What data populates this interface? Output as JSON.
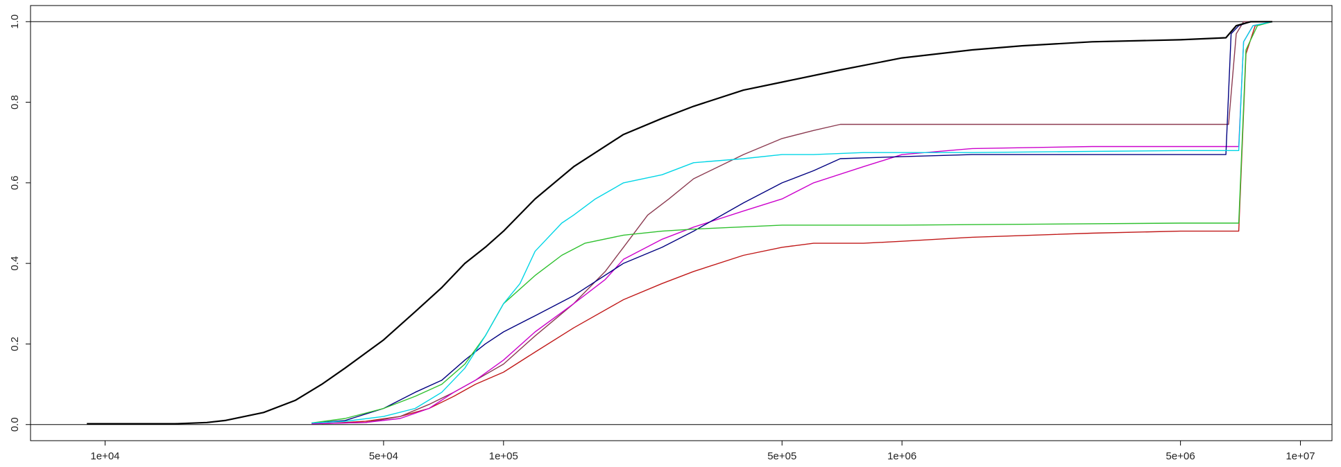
{
  "chart_data": {
    "type": "line",
    "x_scale": "log",
    "xlim": [
      6500,
      12000000
    ],
    "ylim": [
      -0.04,
      1.04
    ],
    "x_ticks": [
      {
        "value": 10000,
        "label": "1e+04"
      },
      {
        "value": 50000,
        "label": "5e+04"
      },
      {
        "value": 100000,
        "label": "1e+05"
      },
      {
        "value": 500000,
        "label": "5e+05"
      },
      {
        "value": 1000000,
        "label": "1e+06"
      },
      {
        "value": 5000000,
        "label": "5e+06"
      },
      {
        "value": 10000000,
        "label": "1e+07"
      }
    ],
    "y_ticks": [
      {
        "value": 0,
        "label": "0.0"
      },
      {
        "value": 0.2,
        "label": "0.2"
      },
      {
        "value": 0.4,
        "label": "0.4"
      },
      {
        "value": 0.6,
        "label": "0.6"
      },
      {
        "value": 0.8,
        "label": "0.8"
      },
      {
        "value": 1,
        "label": "1.0"
      }
    ],
    "reference_lines": [
      0,
      1
    ],
    "grid": false,
    "legend": "none",
    "series": [
      {
        "color": "#000000",
        "width": 2.2,
        "x": [
          9000,
          12000,
          15000,
          18000,
          20000,
          25000,
          30000,
          35000,
          40000,
          50000,
          60000,
          70000,
          80000,
          90000,
          100000,
          120000,
          150000,
          200000,
          250000,
          300000,
          400000,
          500000,
          700000,
          1000000,
          1500000,
          2000000,
          3000000,
          5000000,
          6500000,
          6900000,
          7500000,
          8500000
        ],
        "y": [
          0.002,
          0.002,
          0.002,
          0.005,
          0.01,
          0.03,
          0.06,
          0.1,
          0.14,
          0.21,
          0.28,
          0.34,
          0.4,
          0.44,
          0.48,
          0.56,
          0.64,
          0.72,
          0.76,
          0.79,
          0.83,
          0.85,
          0.88,
          0.91,
          0.93,
          0.94,
          0.95,
          0.955,
          0.96,
          0.99,
          1.0,
          1.0
        ]
      },
      {
        "color": "#00d5e6",
        "width": 1.4,
        "x": [
          33000,
          40000,
          50000,
          60000,
          70000,
          80000,
          90000,
          100000,
          110000,
          120000,
          140000,
          150000,
          170000,
          200000,
          250000,
          300000,
          400000,
          500000,
          600000,
          800000,
          1000000,
          1500000,
          3000000,
          5000000,
          7000000,
          7200000,
          7600000,
          8500000
        ],
        "y": [
          0.004,
          0.008,
          0.02,
          0.04,
          0.08,
          0.14,
          0.22,
          0.3,
          0.35,
          0.43,
          0.5,
          0.52,
          0.56,
          0.6,
          0.62,
          0.65,
          0.66,
          0.67,
          0.67,
          0.675,
          0.675,
          0.675,
          0.678,
          0.68,
          0.68,
          0.95,
          0.99,
          1.0
        ]
      },
      {
        "color": "#2ec02e",
        "width": 1.4,
        "x": [
          33000,
          40000,
          50000,
          60000,
          70000,
          80000,
          90000,
          100000,
          120000,
          140000,
          160000,
          200000,
          250000,
          300000,
          500000,
          700000,
          1000000,
          2000000,
          5000000,
          7000000,
          7300000,
          7800000,
          8500000
        ],
        "y": [
          0.004,
          0.015,
          0.04,
          0.07,
          0.1,
          0.15,
          0.22,
          0.3,
          0.37,
          0.42,
          0.45,
          0.47,
          0.48,
          0.485,
          0.495,
          0.495,
          0.495,
          0.497,
          0.5,
          0.5,
          0.93,
          0.99,
          1.0
        ]
      },
      {
        "color": "#000080",
        "width": 1.4,
        "x": [
          33000,
          40000,
          50000,
          60000,
          70000,
          80000,
          90000,
          100000,
          120000,
          150000,
          200000,
          250000,
          300000,
          400000,
          500000,
          600000,
          700000,
          1000000,
          1500000,
          3000000,
          5000000,
          6500000,
          6700000,
          7000000,
          7500000,
          8000000
        ],
        "y": [
          0.004,
          0.01,
          0.04,
          0.08,
          0.11,
          0.16,
          0.2,
          0.23,
          0.27,
          0.32,
          0.4,
          0.44,
          0.48,
          0.55,
          0.6,
          0.63,
          0.66,
          0.665,
          0.67,
          0.67,
          0.67,
          0.67,
          0.97,
          0.99,
          1.0,
          1.0
        ]
      },
      {
        "color": "#cc00cc",
        "width": 1.4,
        "x": [
          33000,
          45000,
          55000,
          65000,
          75000,
          85000,
          100000,
          120000,
          150000,
          180000,
          200000,
          250000,
          300000,
          400000,
          500000,
          600000,
          800000,
          1000000,
          1500000,
          3000000,
          5000000,
          7000000,
          7200000,
          7600000,
          8500000
        ],
        "y": [
          0.002,
          0.005,
          0.015,
          0.04,
          0.08,
          0.11,
          0.16,
          0.23,
          0.3,
          0.36,
          0.41,
          0.46,
          0.49,
          0.53,
          0.56,
          0.6,
          0.64,
          0.67,
          0.685,
          0.69,
          0.69,
          0.69,
          0.95,
          0.99,
          1.0
        ]
      },
      {
        "color": "#8b3a50",
        "width": 1.4,
        "x": [
          33000,
          45000,
          55000,
          65000,
          75000,
          85000,
          100000,
          120000,
          150000,
          180000,
          200000,
          230000,
          260000,
          300000,
          400000,
          500000,
          600000,
          700000,
          1000000,
          2000000,
          5000000,
          6600000,
          6900000,
          7200000,
          8000000
        ],
        "y": [
          0.002,
          0.005,
          0.02,
          0.05,
          0.08,
          0.11,
          0.15,
          0.22,
          0.3,
          0.38,
          0.44,
          0.52,
          0.56,
          0.61,
          0.67,
          0.71,
          0.73,
          0.745,
          0.745,
          0.745,
          0.745,
          0.745,
          0.97,
          1.0,
          1.0
        ]
      },
      {
        "color": "#c01818",
        "width": 1.4,
        "x": [
          35000,
          45000,
          55000,
          65000,
          75000,
          85000,
          100000,
          120000,
          150000,
          200000,
          250000,
          300000,
          400000,
          500000,
          600000,
          800000,
          1000000,
          1500000,
          3000000,
          5000000,
          7000000,
          7300000,
          7700000,
          8500000
        ],
        "y": [
          0.002,
          0.008,
          0.02,
          0.04,
          0.07,
          0.1,
          0.13,
          0.18,
          0.24,
          0.31,
          0.35,
          0.38,
          0.42,
          0.44,
          0.45,
          0.45,
          0.455,
          0.465,
          0.475,
          0.48,
          0.48,
          0.92,
          0.99,
          1.0
        ]
      }
    ]
  }
}
